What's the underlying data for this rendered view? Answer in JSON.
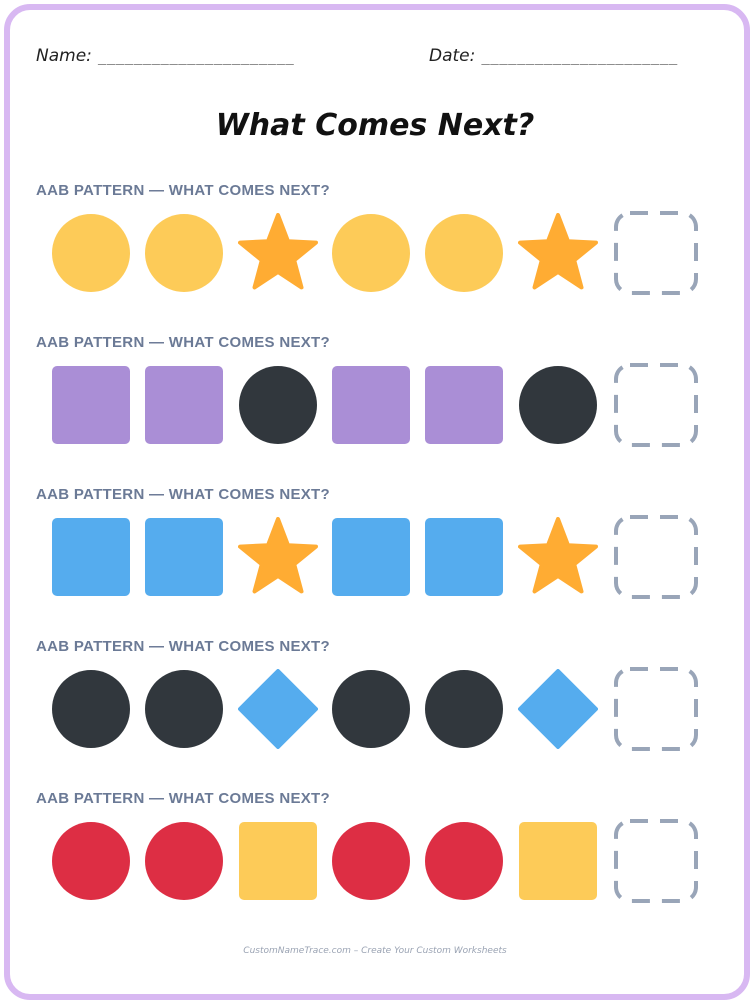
{
  "header": {
    "name_label": "Name:",
    "name_line": "______________________",
    "date_label": "Date:",
    "date_line": "______________________"
  },
  "title": "What Comes Next?",
  "patterns": [
    {
      "label": "AAB PATTERN — WHAT COMES NEXT?",
      "shapes": [
        "yellow-circle",
        "yellow-circle",
        "orange-star",
        "yellow-circle",
        "yellow-circle",
        "orange-star",
        "answer-box"
      ]
    },
    {
      "label": "AAB PATTERN — WHAT COMES NEXT?",
      "shapes": [
        "purple-square",
        "purple-square",
        "black-circle",
        "purple-square",
        "purple-square",
        "black-circle",
        "answer-box"
      ]
    },
    {
      "label": "AAB PATTERN — WHAT COMES NEXT?",
      "shapes": [
        "blue-square",
        "blue-square",
        "orange-star",
        "blue-square",
        "blue-square",
        "orange-star",
        "answer-box"
      ]
    },
    {
      "label": "AAB PATTERN — WHAT COMES NEXT?",
      "shapes": [
        "black-circle",
        "black-circle",
        "blue-diamond",
        "black-circle",
        "black-circle",
        "blue-diamond",
        "answer-box"
      ]
    },
    {
      "label": "AAB PATTERN — WHAT COMES NEXT?",
      "shapes": [
        "red-circle",
        "red-circle",
        "yellow-square",
        "red-circle",
        "red-circle",
        "yellow-square",
        "answer-box"
      ]
    }
  ],
  "colors": {
    "yellow": "#fdcb58",
    "orange": "#ffac33",
    "purple": "#aa8ed6",
    "black": "#31373d",
    "blue": "#55acee",
    "red": "#dd2e44",
    "answer_box": "#99a5b8",
    "frame": "#d8b8f2"
  },
  "footer": "CustomNameTrace.com – Create Your Custom Worksheets"
}
